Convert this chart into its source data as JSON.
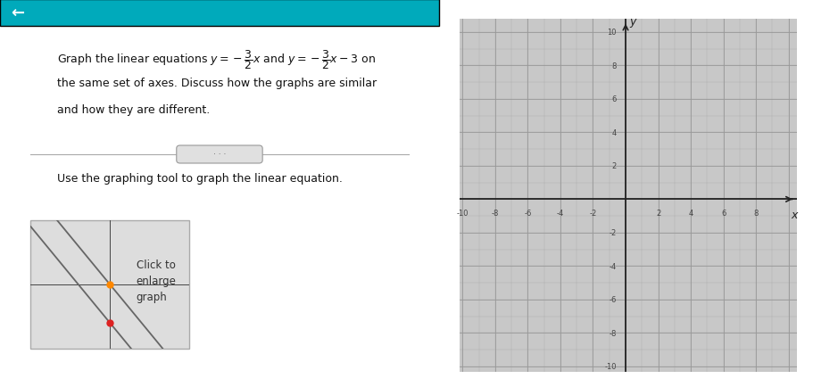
{
  "fig_width": 9.11,
  "fig_height": 4.35,
  "bg_color": "#ffffff",
  "top_bar_color": "#00aabb",
  "tick_label_color": "#444444",
  "xlim": [
    -10,
    10
  ],
  "ylim": [
    -10,
    10
  ],
  "xticks": [
    -10,
    -8,
    -6,
    -4,
    -2,
    2,
    4,
    6,
    8
  ],
  "yticks": [
    -10,
    -8,
    -6,
    -4,
    -2,
    2,
    4,
    6,
    8,
    10
  ],
  "line1_slope": -1.5,
  "line1_intercept": 0,
  "line2_slope": -1.5,
  "line2_intercept": -3,
  "thumb_line_color": "#666666",
  "thumb_dot1_color": "#ff8800",
  "thumb_dot2_color": "#dd2222",
  "grid_bg": "#c8c8c8",
  "minor_grid_color": "#b0b0b0",
  "major_grid_color": "#999999",
  "axis_line_color": "#222222"
}
